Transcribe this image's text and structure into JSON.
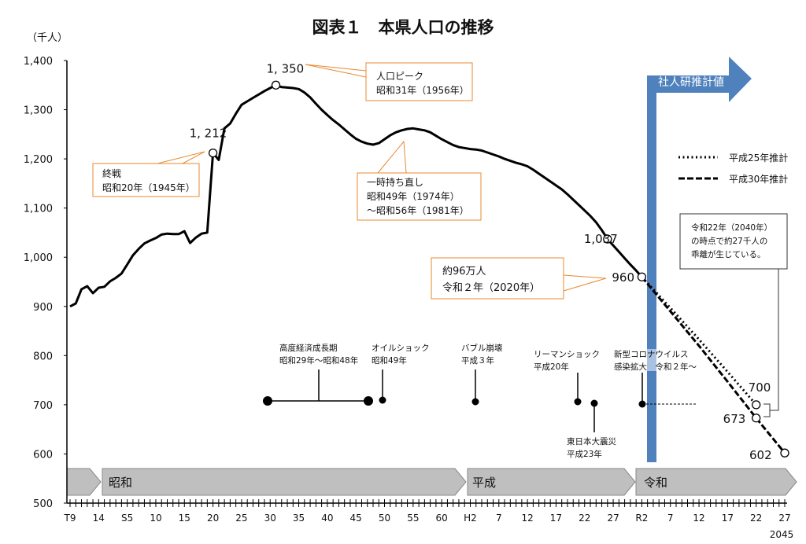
{
  "chart_data": {
    "type": "line",
    "title": "図表１　本県人口の推移",
    "ylabel": "（千人）",
    "ylim": [
      500,
      1400
    ],
    "yticks": [
      500,
      600,
      700,
      800,
      900,
      1000,
      1100,
      1200,
      1300,
      1400
    ],
    "ytick_labels": [
      "500",
      "600",
      "700",
      "800",
      "900",
      "1,000",
      "1,100",
      "1,200",
      "1,300",
      "1,400"
    ],
    "xlim": [
      1920,
      2045
    ],
    "xtick_years": [
      1920,
      1925,
      1930,
      1935,
      1940,
      1945,
      1950,
      1955,
      1960,
      1965,
      1970,
      1975,
      1980,
      1985,
      1990,
      1995,
      2000,
      2005,
      2010,
      2015,
      2020,
      2025,
      2030,
      2035,
      2040,
      2045
    ],
    "xtick_labels": [
      "T9",
      "14",
      "S5",
      "10",
      "15",
      "20",
      "25",
      "30",
      "35",
      "40",
      "45",
      "50",
      "55",
      "60",
      "H2",
      "7",
      "12",
      "17",
      "22",
      "27",
      "R2",
      "7",
      "12",
      "17",
      "22",
      "27"
    ],
    "x_extra_label": "2045",
    "grid": false,
    "legend_position": "right",
    "series": [
      {
        "style": "solid",
        "x": [
          1920,
          1921,
          1922,
          1923,
          1924,
          1925,
          1926,
          1927,
          1928,
          1929,
          1930,
          1931,
          1932,
          1933,
          1934,
          1935,
          1936,
          1937,
          1938,
          1939,
          1940,
          1941,
          1942,
          1943,
          1944,
          1945,
          1946,
          1947,
          1948,
          1949,
          1950,
          1951,
          1952,
          1953,
          1954,
          1955,
          1956,
          1957,
          1958,
          1959,
          1960,
          1961,
          1962,
          1963,
          1964,
          1965,
          1966,
          1967,
          1968,
          1969,
          1970,
          1971,
          1972,
          1973,
          1974,
          1975,
          1976,
          1977,
          1978,
          1979,
          1980,
          1981,
          1982,
          1983,
          1984,
          1985,
          1986,
          1987,
          1988,
          1989,
          1990,
          1991,
          1992,
          1993,
          1994,
          1995,
          1996,
          1997,
          1998,
          1999,
          2000,
          2001,
          2002,
          2003,
          2004,
          2005,
          2006,
          2007,
          2008,
          2009,
          2010,
          2011,
          2012,
          2013,
          2014,
          2015,
          2016,
          2017,
          2018,
          2019,
          2020
        ],
        "y": [
          900,
          906,
          935,
          941,
          927,
          938,
          940,
          951,
          958,
          967,
          985,
          1004,
          1017,
          1028,
          1034,
          1039,
          1046,
          1048,
          1047,
          1047,
          1053,
          1029,
          1040,
          1048,
          1050,
          1212,
          1198,
          1262,
          1272,
          1292,
          1310,
          1317,
          1324,
          1331,
          1338,
          1344,
          1350,
          1346,
          1345,
          1344,
          1342,
          1335,
          1325,
          1312,
          1300,
          1289,
          1279,
          1270,
          1260,
          1250,
          1241,
          1235,
          1231,
          1229,
          1232,
          1240,
          1248,
          1254,
          1258,
          1261,
          1262,
          1260,
          1258,
          1254,
          1247,
          1240,
          1234,
          1228,
          1224,
          1222,
          1220,
          1219,
          1217,
          1213,
          1209,
          1205,
          1200,
          1196,
          1192,
          1189,
          1185,
          1178,
          1170,
          1162,
          1154,
          1146,
          1138,
          1128,
          1117,
          1106,
          1095,
          1084,
          1071,
          1055,
          1037,
          1024,
          1011,
          998,
          985,
          973,
          960
        ]
      },
      {
        "name": "平成25年推計",
        "style": "dotted",
        "x": [
          2020,
          2025,
          2030,
          2035,
          2040
        ],
        "y": [
          960,
          897,
          833,
          767,
          700
        ]
      },
      {
        "name": "平成30年推計",
        "style": "dashed",
        "x": [
          2020,
          2025,
          2030,
          2035,
          2040,
          2045
        ],
        "y": [
          960,
          890,
          820,
          747,
          673,
          602
        ]
      }
    ],
    "markers": [
      {
        "year": 1945,
        "value": 1212,
        "label": "1, 212"
      },
      {
        "year": 1956,
        "value": 1350,
        "label": "1, 350"
      },
      {
        "year": 2014,
        "value": 1037,
        "label": "1,037"
      },
      {
        "year": 2020,
        "value": 960,
        "label": "960"
      },
      {
        "year": 2040,
        "value": 700,
        "label": "700"
      },
      {
        "year": 2040,
        "value": 673,
        "label": "673"
      },
      {
        "year": 2045,
        "value": 602,
        "label": "602"
      }
    ],
    "eras": [
      "昭和",
      "平成",
      "令和"
    ],
    "projection_label": "社人研推計値",
    "callouts": {
      "peak": [
        "人口ピーク",
        "昭和31年（1956年）"
      ],
      "war_end": [
        "終戦",
        "昭和20年（1945年）"
      ],
      "recovery": [
        "一時持ち直し",
        "昭和49年（1974年）",
        "～昭和56年（1981年）"
      ],
      "current": [
        "約96万人",
        "令和２年（2020年）"
      ],
      "gap": [
        "令和22年（2040年）",
        "の時点で約27千人の",
        "乖離が生じている。"
      ]
    },
    "events": {
      "growth": [
        "高度経済成長期",
        "昭和29年～昭和48年"
      ],
      "oil": [
        "オイルショック",
        "昭和49年"
      ],
      "bubble": [
        "バブル崩壊",
        "平成３年"
      ],
      "lehman": [
        "リーマンショック",
        "平成20年"
      ],
      "quake": [
        "東日本大震災",
        "平成23年"
      ],
      "covid": [
        "新型コロナウイルス",
        "感染拡大　令和２年～"
      ]
    },
    "colors": {
      "line": "#000000",
      "callout_border": "#E8892F",
      "projection": "#4F81BD",
      "era_fill": "#BFBFBF"
    }
  }
}
